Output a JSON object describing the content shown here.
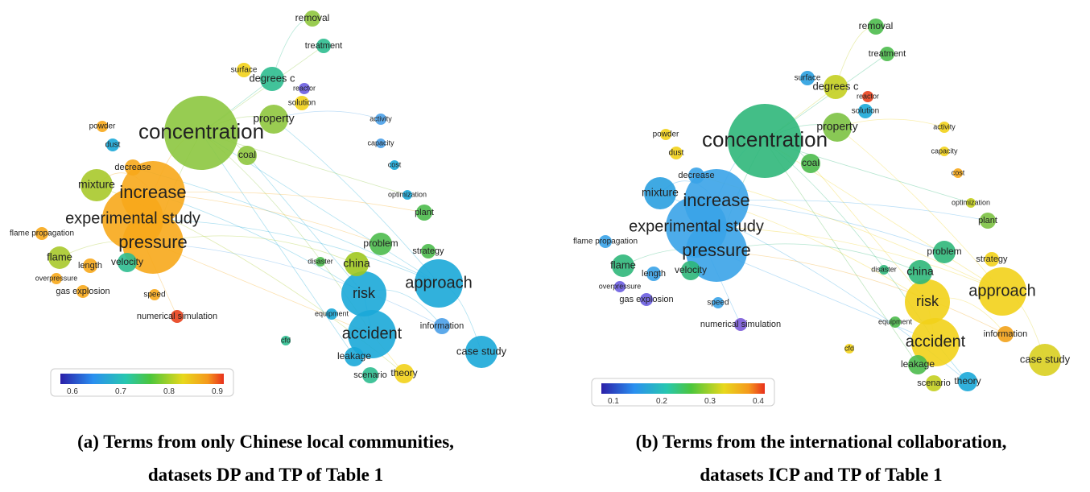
{
  "panels": [
    {
      "caption": [
        "(a) Terms from only Chinese local communities,",
        "datasets DP and TP of Table 1"
      ],
      "colorbar_ticks": [
        "0.6",
        "0.7",
        "0.8",
        "0.9"
      ],
      "terms": [
        "concentration",
        "increase",
        "experimental study",
        "pressure",
        "mixture",
        "approach",
        "risk",
        "accident",
        "case study",
        "china",
        "problem",
        "property",
        "degrees c",
        "removal",
        "treatment",
        "surface",
        "coal",
        "flame",
        "length",
        "velocity",
        "gas explosion",
        "speed",
        "numerical simulation",
        "leakage",
        "theory",
        "scenario",
        "information",
        "plant",
        "strategy",
        "decrease",
        "dust",
        "powder",
        "solution",
        "activity",
        "capacity",
        "cost",
        "optimization",
        "equipment",
        "disaster",
        "cfd",
        "flame propagation",
        "overpressure",
        "reactor"
      ]
    },
    {
      "caption": [
        "(b) Terms from the international collaboration,",
        "datasets ICP and TP of Table 1"
      ],
      "colorbar_ticks": [
        "0.1",
        "0.2",
        "0.3",
        "0.4"
      ],
      "terms": [
        "concentration",
        "increase",
        "experimental study",
        "pressure",
        "mixture",
        "approach",
        "risk",
        "accident",
        "case study",
        "china",
        "problem",
        "property",
        "degrees c",
        "removal",
        "treatment",
        "surface",
        "coal",
        "flame",
        "length",
        "velocity",
        "gas explosion",
        "speed",
        "numerical simulation",
        "leakage",
        "theory",
        "scenario",
        "information",
        "plant",
        "strategy",
        "decrease",
        "dust",
        "powder",
        "solution",
        "activity",
        "capacity",
        "cost",
        "optimization",
        "equipment",
        "disaster",
        "cfd",
        "flame propagation",
        "overpressure",
        "reactor"
      ]
    }
  ]
}
